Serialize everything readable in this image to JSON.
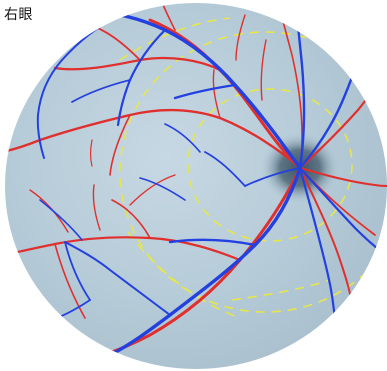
{
  "header": {
    "eye_label": "右眼"
  },
  "colors": {
    "background": "#ffffff",
    "fundus": "#b9cfdc",
    "artery": "#e0302e",
    "vein": "#2340e0",
    "dashed_ring": "#e8e84a",
    "optic_disc": "#6f8595"
  }
}
